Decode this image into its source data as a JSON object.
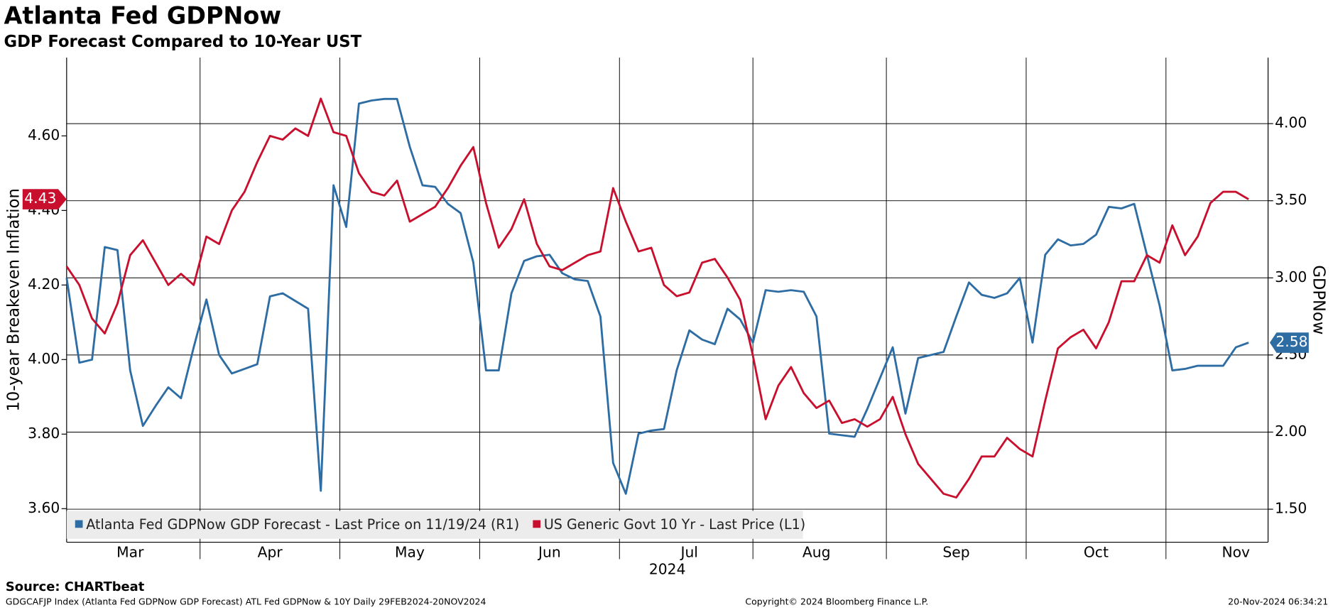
{
  "chart_data": {
    "type": "line",
    "title": "Atlanta Fed GDPNow",
    "subtitle": "GDP Forecast Compared to 10-Year UST",
    "ylabel": "10-year Breakeven Inflation",
    "y2label": "GDPNow",
    "xlabel": "2024",
    "source": "Source: CHARTbeat",
    "footer_left": "GDGCAFJP Index (Atlanta Fed GDPNow GDP Forecast) ATL Fed GDPNow & 10Y  Daily 29FEB2024-20NOV2024",
    "footer_center": "Copyright© 2024 Bloomberg Finance L.P.",
    "footer_right": "20-Nov-2024 06:34:21",
    "categories": [
      null,
      null,
      null,
      null,
      null,
      "Mar",
      null,
      null,
      null,
      null,
      null,
      null,
      null,
      null,
      null,
      null,
      "Apr",
      null,
      null,
      null,
      null,
      null,
      null,
      null,
      null,
      null,
      null,
      "May",
      null,
      null,
      null,
      null,
      null,
      null,
      null,
      null,
      null,
      null,
      "Jun",
      null,
      null,
      null,
      null,
      null,
      null,
      null,
      null,
      null,
      null,
      "Jul",
      null,
      null,
      null,
      null,
      null,
      null,
      null,
      null,
      null,
      "Aug",
      null,
      null,
      null,
      null,
      null,
      null,
      null,
      null,
      null,
      null,
      "Sep",
      null,
      null,
      null,
      null,
      null,
      null,
      null,
      null,
      null,
      null,
      "Oct",
      null,
      null,
      null,
      null,
      null,
      null,
      null,
      null,
      null,
      null,
      "Nov",
      null
    ],
    "series": [
      {
        "name": "Atlanta Fed GDPNow GDP Forecast - Last Price on 11/19/24 (R1)",
        "color": "#2e6da4",
        "axis": "y2",
        "values": [
          3.0,
          2.45,
          2.47,
          3.2,
          3.18,
          2.4,
          2.04,
          2.17,
          2.29,
          2.22,
          2.55,
          2.86,
          2.5,
          2.38,
          2.41,
          2.44,
          2.88,
          2.9,
          2.85,
          2.8,
          1.62,
          3.6,
          3.33,
          4.13,
          4.15,
          4.16,
          4.16,
          3.85,
          3.6,
          3.59,
          3.48,
          3.42,
          3.1,
          2.4,
          2.4,
          2.9,
          3.11,
          3.14,
          3.15,
          3.03,
          2.99,
          2.98,
          2.75,
          1.8,
          1.6,
          1.99,
          2.01,
          2.02,
          2.4,
          2.66,
          2.6,
          2.57,
          2.8,
          2.73,
          2.58,
          2.92,
          2.91,
          2.92,
          2.91,
          2.75,
          1.99,
          1.98,
          1.97,
          2.15,
          2.35,
          2.55,
          2.12,
          2.48,
          2.5,
          2.52,
          2.75,
          2.97,
          2.89,
          2.87,
          2.9,
          3.0,
          2.58,
          3.15,
          3.25,
          3.21,
          3.22,
          3.28,
          3.46,
          3.45,
          3.48,
          3.15,
          2.82,
          2.4,
          2.41,
          2.43,
          2.43,
          2.43,
          2.55,
          2.58
        ],
        "value_labels": [
          null,
          null,
          null,
          null,
          null,
          null,
          null,
          null,
          null,
          null,
          null,
          null,
          null,
          null,
          null,
          null,
          null,
          null,
          null,
          null,
          null,
          null,
          null,
          null,
          null,
          null,
          null,
          null,
          null,
          null,
          null,
          null,
          null,
          null,
          null,
          null,
          null,
          null,
          null,
          null,
          null,
          null,
          null,
          null,
          null,
          null,
          null,
          null,
          null,
          null,
          null,
          null,
          null,
          null,
          null,
          null,
          null,
          null,
          null,
          null,
          null,
          null,
          null,
          null,
          null,
          null,
          null,
          null,
          null,
          null,
          null,
          null,
          null,
          null,
          null,
          null,
          null,
          null,
          null,
          null,
          null,
          null,
          null,
          null,
          null,
          null,
          null,
          null,
          null,
          null,
          null,
          null,
          null,
          "2.58"
        ]
      },
      {
        "name": "US Generic Govt 10 Yr - Last Price (L1)",
        "color": "#c8102e",
        "axis": "y",
        "values": [
          4.25,
          4.2,
          4.11,
          4.07,
          4.15,
          4.28,
          4.32,
          4.26,
          4.2,
          4.23,
          4.2,
          4.33,
          4.31,
          4.4,
          4.45,
          4.53,
          4.6,
          4.59,
          4.62,
          4.6,
          4.7,
          4.61,
          4.6,
          4.5,
          4.45,
          4.44,
          4.48,
          4.37,
          4.39,
          4.41,
          4.46,
          4.52,
          4.57,
          4.42,
          4.3,
          4.35,
          4.43,
          4.31,
          4.25,
          4.24,
          4.26,
          4.28,
          4.29,
          4.46,
          4.37,
          4.29,
          4.3,
          4.2,
          4.17,
          4.18,
          4.26,
          4.27,
          4.22,
          4.16,
          4.01,
          3.84,
          3.93,
          3.98,
          3.91,
          3.87,
          3.89,
          3.83,
          3.84,
          3.82,
          3.84,
          3.9,
          3.8,
          3.72,
          3.68,
          3.64,
          3.63,
          3.68,
          3.74,
          3.74,
          3.79,
          3.76,
          3.74,
          3.89,
          4.03,
          4.06,
          4.08,
          4.03,
          4.1,
          4.21,
          4.21,
          4.28,
          4.26,
          4.36,
          4.28,
          4.33,
          4.42,
          4.45,
          4.45,
          4.43
        ],
        "value_labels": [
          null,
          null,
          null,
          null,
          null,
          null,
          null,
          null,
          null,
          null,
          null,
          null,
          null,
          null,
          null,
          null,
          null,
          null,
          null,
          null,
          null,
          null,
          null,
          null,
          null,
          null,
          null,
          null,
          null,
          null,
          null,
          null,
          null,
          null,
          null,
          null,
          null,
          null,
          null,
          null,
          null,
          null,
          null,
          null,
          null,
          null,
          null,
          null,
          null,
          null,
          null,
          null,
          null,
          null,
          null,
          null,
          null,
          null,
          null,
          null,
          null,
          null,
          null,
          null,
          null,
          null,
          null,
          null,
          null,
          null,
          null,
          null,
          null,
          null,
          null,
          null,
          null,
          null,
          null,
          null,
          null,
          null,
          null,
          null,
          null,
          null,
          null,
          null,
          null,
          null,
          null,
          null,
          null,
          "4.43"
        ]
      }
    ],
    "ylim": [
      3.51,
      4.81
    ],
    "yticks": [
      {
        "value": 3.6,
        "label": "3.60"
      },
      {
        "value": 3.8,
        "label": "3.80"
      },
      {
        "value": 4.0,
        "label": "4.00"
      },
      {
        "value": 4.2,
        "label": "4.20"
      },
      {
        "value": 4.4,
        "label": "4.40"
      },
      {
        "value": 4.6,
        "label": "4.60"
      }
    ],
    "y2lim": [
      1.286,
      4.428
    ],
    "y2ticks": [
      {
        "value": 1.5,
        "label": "1.50"
      },
      {
        "value": 2.0,
        "label": "2.00"
      },
      {
        "value": 2.5,
        "label": "2.50"
      },
      {
        "value": 3.0,
        "label": "3.00"
      },
      {
        "value": 3.5,
        "label": "3.50"
      },
      {
        "value": 4.0,
        "label": "4.00"
      }
    ],
    "grid": true,
    "legend": "bottom-left"
  }
}
